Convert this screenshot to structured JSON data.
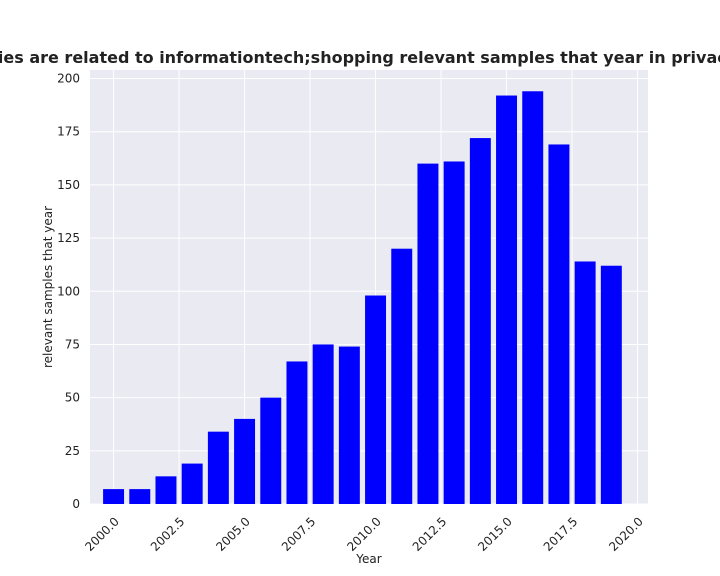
{
  "chart_data": {
    "type": "bar",
    "title": "Categories are related to informationtech;shopping relevant samples that year in privacy policies",
    "xlabel": "Year",
    "ylabel": "relevant samples that year",
    "x": [
      2000,
      2001,
      2002,
      2003,
      2004,
      2005,
      2006,
      2007,
      2008,
      2009,
      2010,
      2011,
      2012,
      2013,
      2014,
      2015,
      2016,
      2017,
      2018,
      2019
    ],
    "values": [
      7,
      7,
      13,
      19,
      34,
      40,
      50,
      67,
      75,
      74,
      98,
      120,
      160,
      161,
      172,
      192,
      194,
      169,
      114,
      112
    ],
    "xlim": [
      1999.1,
      2020.4
    ],
    "ylim": [
      0,
      204
    ],
    "x_ticks": [
      2000.0,
      2002.5,
      2005.0,
      2007.5,
      2010.0,
      2012.5,
      2015.0,
      2017.5,
      2020.0
    ],
    "x_tick_labels": [
      "2000.0",
      "2002.5",
      "2005.0",
      "2007.5",
      "2010.0",
      "2012.5",
      "2015.0",
      "2017.5",
      "2020.0"
    ],
    "y_ticks": [
      0,
      25,
      50,
      75,
      100,
      125,
      150,
      175,
      200
    ],
    "y_tick_labels": [
      "0",
      "25",
      "50",
      "75",
      "100",
      "125",
      "150",
      "175",
      "200"
    ],
    "bar_color": "#0000ff",
    "background_color": "#eaeaf2",
    "grid": true
  }
}
